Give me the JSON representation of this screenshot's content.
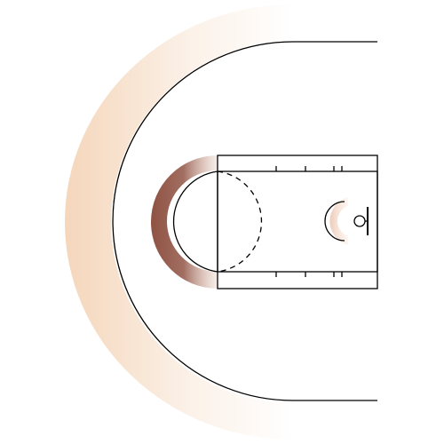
{
  "diagram": {
    "colors": {
      "background": "#ffffff",
      "line": "#000000",
      "outer_zone": "#f1c9a5",
      "inner_zone_dark": "#8a4a3a",
      "inner_zone_light": "#c8957f",
      "rim_zone_dark": "#d9a189",
      "rim_zone_light": "#fbe3d0"
    }
  }
}
